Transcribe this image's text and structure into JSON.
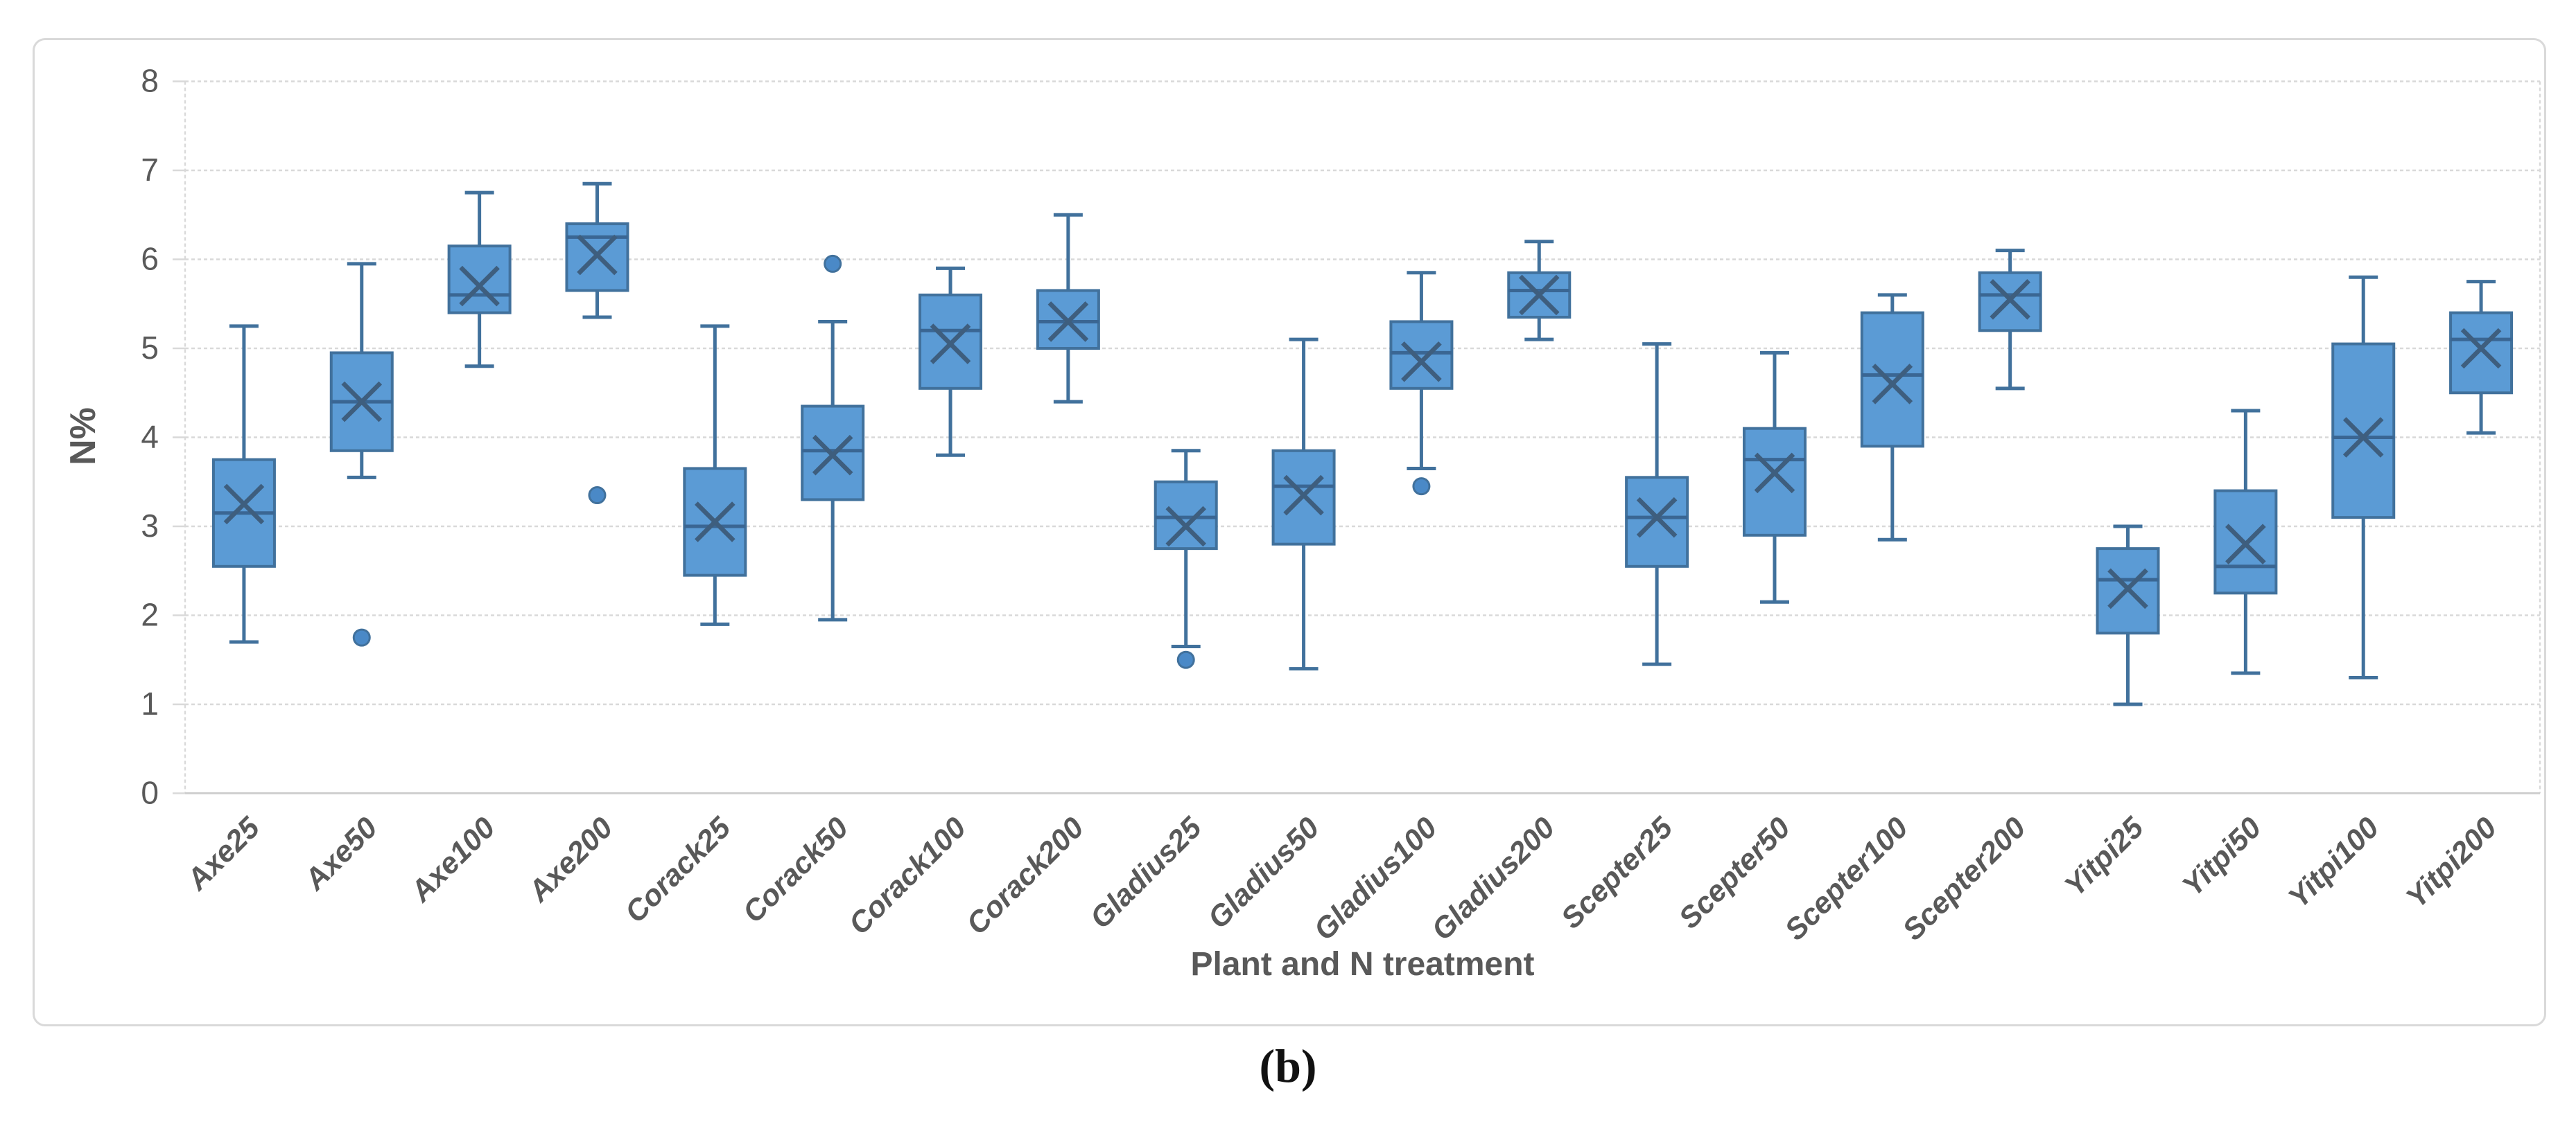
{
  "figure": {
    "caption": "(b)"
  },
  "axes": {
    "y_title": "N%",
    "x_title": "Plant and N treatment",
    "y_ticks": [
      "0",
      "1",
      "2",
      "3",
      "4",
      "5",
      "6",
      "7",
      "8"
    ]
  },
  "colors": {
    "box_fill": "#5B9BD5",
    "box_border": "#41719C",
    "whisker": "#41719C",
    "median_line": "#3A6693",
    "mean_marker": "#3E5E7E",
    "outlier_fill": "#4A89C7",
    "gridline": "#D9D9D9",
    "axis_line": "#CFCFCF",
    "tick_text": "#595959",
    "title_text": "#595959",
    "caption_text": "#111111"
  },
  "chart_data": {
    "type": "box",
    "title": "",
    "xlabel": "Plant and N treatment",
    "ylabel": "N%",
    "ylim": [
      0,
      8
    ],
    "ytick_interval": 1,
    "grid": true,
    "legend": false,
    "categories": [
      "Axe25",
      "Axe50",
      "Axe100",
      "Axe200",
      "Corack25",
      "Corack50",
      "Corack100",
      "Corack200",
      "Gladius25",
      "Gladius50",
      "Gladius100",
      "Gladius200",
      "Scepter25",
      "Scepter50",
      "Scepter100",
      "Scepter200",
      "Yitpi25",
      "Yitpi50",
      "Yitpi100",
      "Yitpi200"
    ],
    "boxes": [
      {
        "category": "Axe25",
        "whisker_low": 1.7,
        "q1": 2.55,
        "median": 3.15,
        "mean": 3.25,
        "q3": 3.75,
        "whisker_high": 5.25,
        "outliers": []
      },
      {
        "category": "Axe50",
        "whisker_low": 3.55,
        "q1": 3.85,
        "median": 4.4,
        "mean": 4.4,
        "q3": 4.95,
        "whisker_high": 5.95,
        "outliers": [
          1.75
        ]
      },
      {
        "category": "Axe100",
        "whisker_low": 4.8,
        "q1": 5.4,
        "median": 5.6,
        "mean": 5.7,
        "q3": 6.15,
        "whisker_high": 6.75,
        "outliers": []
      },
      {
        "category": "Axe200",
        "whisker_low": 5.35,
        "q1": 5.65,
        "median": 6.25,
        "mean": 6.05,
        "q3": 6.4,
        "whisker_high": 6.85,
        "outliers": [
          3.35
        ]
      },
      {
        "category": "Corack25",
        "whisker_low": 1.9,
        "q1": 2.45,
        "median": 3.0,
        "mean": 3.05,
        "q3": 3.65,
        "whisker_high": 5.25,
        "outliers": []
      },
      {
        "category": "Corack50",
        "whisker_low": 1.95,
        "q1": 3.3,
        "median": 3.85,
        "mean": 3.8,
        "q3": 4.35,
        "whisker_high": 5.3,
        "outliers": [
          5.95
        ]
      },
      {
        "category": "Corack100",
        "whisker_low": 3.8,
        "q1": 4.55,
        "median": 5.2,
        "mean": 5.05,
        "q3": 5.6,
        "whisker_high": 5.9,
        "outliers": []
      },
      {
        "category": "Corack200",
        "whisker_low": 4.4,
        "q1": 5.0,
        "median": 5.3,
        "mean": 5.3,
        "q3": 5.65,
        "whisker_high": 6.5,
        "outliers": []
      },
      {
        "category": "Gladius25",
        "whisker_low": 1.65,
        "q1": 2.75,
        "median": 3.1,
        "mean": 3.0,
        "q3": 3.5,
        "whisker_high": 3.85,
        "outliers": [
          1.5
        ]
      },
      {
        "category": "Gladius50",
        "whisker_low": 1.4,
        "q1": 2.8,
        "median": 3.45,
        "mean": 3.35,
        "q3": 3.85,
        "whisker_high": 5.1,
        "outliers": []
      },
      {
        "category": "Gladius100",
        "whisker_low": 3.65,
        "q1": 4.55,
        "median": 4.95,
        "mean": 4.85,
        "q3": 5.3,
        "whisker_high": 5.85,
        "outliers": [
          3.45
        ]
      },
      {
        "category": "Gladius200",
        "whisker_low": 5.1,
        "q1": 5.35,
        "median": 5.65,
        "mean": 5.6,
        "q3": 5.85,
        "whisker_high": 6.2,
        "outliers": []
      },
      {
        "category": "Scepter25",
        "whisker_low": 1.45,
        "q1": 2.55,
        "median": 3.1,
        "mean": 3.1,
        "q3": 3.55,
        "whisker_high": 5.05,
        "outliers": []
      },
      {
        "category": "Scepter50",
        "whisker_low": 2.15,
        "q1": 2.9,
        "median": 3.75,
        "mean": 3.6,
        "q3": 4.1,
        "whisker_high": 4.95,
        "outliers": []
      },
      {
        "category": "Scepter100",
        "whisker_low": 2.85,
        "q1": 3.9,
        "median": 4.7,
        "mean": 4.6,
        "q3": 5.4,
        "whisker_high": 5.6,
        "outliers": []
      },
      {
        "category": "Scepter200",
        "whisker_low": 4.55,
        "q1": 5.2,
        "median": 5.6,
        "mean": 5.55,
        "q3": 5.85,
        "whisker_high": 6.1,
        "outliers": []
      },
      {
        "category": "Yitpi25",
        "whisker_low": 1.0,
        "q1": 1.8,
        "median": 2.4,
        "mean": 2.3,
        "q3": 2.75,
        "whisker_high": 3.0,
        "outliers": []
      },
      {
        "category": "Yitpi50",
        "whisker_low": 1.35,
        "q1": 2.25,
        "median": 2.55,
        "mean": 2.8,
        "q3": 3.4,
        "whisker_high": 4.3,
        "outliers": []
      },
      {
        "category": "Yitpi100",
        "whisker_low": 1.3,
        "q1": 3.1,
        "median": 4.0,
        "mean": 4.0,
        "q3": 5.05,
        "whisker_high": 5.8,
        "outliers": []
      },
      {
        "category": "Yitpi200",
        "whisker_low": 4.05,
        "q1": 4.5,
        "median": 5.1,
        "mean": 5.0,
        "q3": 5.4,
        "whisker_high": 5.75,
        "outliers": []
      }
    ]
  }
}
